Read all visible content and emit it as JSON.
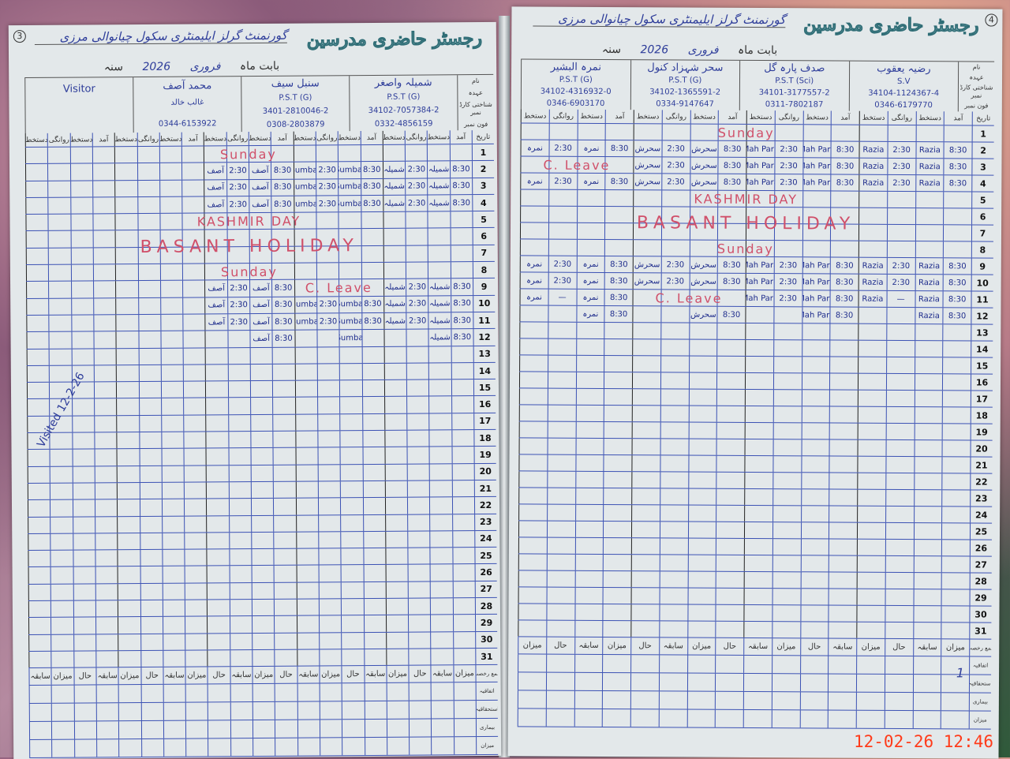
{
  "register_title": "رجسٹر حاضری مدرسین",
  "timestamp": "12-02-26 12:46",
  "column_labels": {
    "date": "تاریخ",
    "arrival": "آمد",
    "signature": "دستخط",
    "departure": "روانگی"
  },
  "row_labels": {
    "name": "نام",
    "designation": "عہدہ",
    "cnic": "شناختی کارڈ نمبر",
    "phone": "فون نمبر"
  },
  "footer": {
    "totals_header": [
      "میزان",
      "سابقہ",
      "حال"
    ],
    "leave_total": "جمع رخصت",
    "rows": [
      "اتفاقیہ",
      "استحقاقیہ",
      "بیماری",
      "میزان"
    ]
  },
  "left_page": {
    "page_number": "3",
    "school": "گورنمنٹ گرلز ایلیمنٹری سکول چیانوالی مرزی",
    "month_label": "بابت ماہ",
    "month": "فروری",
    "year_label": "سنہ",
    "year": "2026",
    "teachers": [
      {
        "name": "شمیلہ واصغر",
        "designation": "P.S.T (G)",
        "cnic": "34102-7057384-2",
        "phone": "0332-4856159"
      },
      {
        "name": "سنبل سیف",
        "designation": "P.S.T (G)",
        "cnic": "3401-2810046-2",
        "phone": "0308-2803879"
      },
      {
        "name": "محمد آصف",
        "designation": "غالب خالد",
        "cnic": "",
        "phone": "0344-6153922"
      },
      {
        "name": "Visitor",
        "designation": "",
        "cnic": "",
        "phone": ""
      }
    ],
    "entries": {
      "2": [
        "8:30",
        "شمیلہ",
        "2:30",
        "شمیلہ",
        "8:30",
        "Sumbal",
        "2:30",
        "Sumbal",
        "8:30",
        "آصف",
        "2:30",
        "آصف"
      ],
      "3": [
        "8:30",
        "شمیلہ",
        "2:30",
        "شمیلہ",
        "8:30",
        "Sumbal",
        "2:30",
        "Sumbal",
        "8:30",
        "آصف",
        "2:30",
        "آصف"
      ],
      "4": [
        "8:30",
        "شمیلہ",
        "2:30",
        "شمیلہ",
        "8:30",
        "Sumbal",
        "2:30",
        "Sumbal",
        "8:30",
        "آصف",
        "2:30",
        "آصف"
      ],
      "9": [
        "8:30",
        "شمیلہ",
        "2:30",
        "شمیلہ",
        "",
        "",
        "",
        "",
        "8:30",
        "آصف",
        "2:30",
        "آصف"
      ],
      "10": [
        "8:30",
        "شمیلہ",
        "2:30",
        "شمیلہ",
        "8:30",
        "Sumbal",
        "2:30",
        "Sumbal",
        "8:30",
        "آصف",
        "2:30",
        "آصف"
      ],
      "11": [
        "8:30",
        "شمیلہ",
        "2:30",
        "شمیلہ",
        "8:30",
        "Sumbal",
        "2:30",
        "Sumbal",
        "8:30",
        "آصف",
        "2:30",
        "آصف"
      ],
      "12": [
        "8:30",
        "شمیلہ",
        "",
        "",
        "",
        "Sumbal",
        "",
        "",
        "8:30",
        "آصف",
        "",
        ""
      ]
    },
    "annotations": {
      "sunday1": "Sunday",
      "kashmir": "KASHMIR DAY",
      "basant": "BASANT HOLIDAY",
      "sunday2": "Sunday",
      "cleave": "C. Leave"
    },
    "visitor_signature": "Visited 12-2-26"
  },
  "right_page": {
    "page_number": "4",
    "school": "گورنمنٹ گرلز ایلیمنٹری سکول چیانوالی مرزی",
    "month_label": "بابت ماہ",
    "month": "فروری",
    "year_label": "سنہ",
    "year": "2026",
    "teachers": [
      {
        "name": "رضیہ یعقوب",
        "designation": "S.V",
        "cnic": "34104-1124367-4",
        "phone": "0346-6179770"
      },
      {
        "name": "صدف پارہ گل",
        "designation": "P.S.T (Sci)",
        "cnic": "34101-3177557-2",
        "phone": "0311-7802187"
      },
      {
        "name": "سحر شہزاد کنول",
        "designation": "P.S.T (G)",
        "cnic": "34102-1365591-2",
        "phone": "0334-9147647"
      },
      {
        "name": "نمرہ البشیر",
        "designation": "P.S.T (G)",
        "cnic": "34102-4316932-0",
        "phone": "0346-6903170"
      }
    ],
    "entries": {
      "2": [
        "8:30",
        "Razia",
        "2:30",
        "Razia",
        "8:30",
        "Mah Para",
        "2:30",
        "Mah Para",
        "8:30",
        "سحرش",
        "2:30",
        "سحرش",
        "8:30",
        "نمرہ",
        "2:30",
        "نمرہ"
      ],
      "3": [
        "8:30",
        "Razia",
        "2:30",
        "Razia",
        "8:30",
        "Mah Para",
        "2:30",
        "Mah Para",
        "8:30",
        "سحرش",
        "2:30",
        "سحرش",
        "",
        "",
        "",
        ""
      ],
      "4": [
        "8:30",
        "Razia",
        "2:30",
        "Razia",
        "8:30",
        "Mah Para",
        "2:30",
        "Mah Para",
        "8:30",
        "سحرش",
        "2:30",
        "سحرش",
        "8:30",
        "نمرہ",
        "2:30",
        "نمرہ"
      ],
      "9": [
        "8:30",
        "Razia",
        "2:30",
        "Razia",
        "8:30",
        "Mah Para",
        "2:30",
        "Mah Para",
        "8:30",
        "سحرش",
        "2:30",
        "سحرش",
        "8:30",
        "نمرہ",
        "2:30",
        "نمرہ"
      ],
      "10": [
        "8:30",
        "Razia",
        "2:30",
        "Razia",
        "8:30",
        "Mah Para",
        "2:30",
        "Mah Para",
        "8:30",
        "سحرش",
        "2:30",
        "سحرش",
        "8:30",
        "نمرہ",
        "2:30",
        "نمرہ"
      ],
      "11": [
        "8:30",
        "Razia",
        "—",
        "Razia",
        "8:30",
        "Mah Para",
        "2:30",
        "Mah Para",
        "",
        "",
        "",
        "",
        "8:30",
        "نمرہ",
        "—",
        "نمرہ"
      ],
      "12": [
        "8:30",
        "Razia",
        "",
        "",
        "8:30",
        "Mah Para",
        "",
        "",
        "8:30",
        "سحرش",
        "",
        "",
        "8:30",
        "نمرہ",
        "",
        ""
      ]
    },
    "annotations": {
      "sunday1": "Sunday",
      "kashmir": "KASHMIR DAY",
      "basant": "BASANT HOLIDAY",
      "sunday2": "Sunday",
      "cleave1": "C. Leave",
      "cleave2": "C. Leave"
    },
    "footer_mark": "1"
  }
}
